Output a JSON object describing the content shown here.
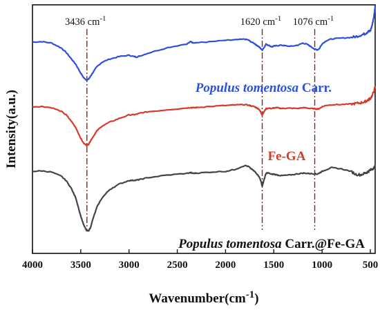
{
  "chart_data": {
    "type": "line",
    "title": "",
    "xlabel": "Wavenumber(cm",
    "xlabel_sup": "-1",
    "xlabel_close": ")",
    "ylabel": "Intensity(a.u.)",
    "xlim": [
      4000,
      450
    ],
    "x_reversed": true,
    "ylim": [
      0,
      1
    ],
    "y_ticks_shown": false,
    "grid": false,
    "x_ticks": [
      4000,
      3500,
      3000,
      2500,
      2000,
      1500,
      1000,
      500
    ],
    "x_tick_labels": [
      "4000",
      "3500",
      "3000",
      "2500",
      "2000",
      "1500",
      "1000",
      "500"
    ],
    "peak_markers": [
      {
        "x": 3436,
        "label": "3436 cm",
        "sup": "-1"
      },
      {
        "x": 1620,
        "label": "1620 cm",
        "sup": "-1"
      },
      {
        "x": 1076,
        "label": "1076 cm",
        "sup": "-1"
      }
    ],
    "peak_marker_color": "#7b2a1a",
    "series": [
      {
        "label_italic": "Populus tomentosa",
        "label_rest": " Carr.",
        "color": "#2d4fd9",
        "x": [
          4000,
          3900,
          3800,
          3700,
          3650,
          3600,
          3550,
          3500,
          3470,
          3440,
          3420,
          3400,
          3370,
          3330,
          3280,
          3200,
          3100,
          3000,
          2950,
          2920,
          2880,
          2800,
          2600,
          2400,
          2360,
          2340,
          2300,
          2200,
          2000,
          1900,
          1800,
          1760,
          1740,
          1700,
          1680,
          1660,
          1640,
          1620,
          1600,
          1580,
          1560,
          1520,
          1500,
          1460,
          1420,
          1380,
          1320,
          1250,
          1200,
          1160,
          1120,
          1076,
          1050,
          1030,
          1000,
          950,
          900,
          800,
          700,
          650,
          600,
          560,
          540,
          520,
          500,
          480,
          460,
          450
        ],
        "y": [
          0.85,
          0.852,
          0.846,
          0.826,
          0.808,
          0.784,
          0.76,
          0.725,
          0.707,
          0.697,
          0.7,
          0.712,
          0.73,
          0.752,
          0.769,
          0.782,
          0.792,
          0.797,
          0.792,
          0.79,
          0.795,
          0.806,
          0.828,
          0.843,
          0.852,
          0.848,
          0.848,
          0.85,
          0.857,
          0.859,
          0.862,
          0.858,
          0.852,
          0.844,
          0.838,
          0.833,
          0.826,
          0.818,
          0.829,
          0.842,
          0.838,
          0.831,
          0.834,
          0.836,
          0.838,
          0.835,
          0.833,
          0.838,
          0.846,
          0.842,
          0.833,
          0.822,
          0.819,
          0.823,
          0.843,
          0.857,
          0.863,
          0.866,
          0.869,
          0.872,
          0.878,
          0.883,
          0.888,
          0.892,
          0.895,
          0.92,
          0.96,
          0.996
        ]
      },
      {
        "label_italic": "",
        "label_rest": "Fe-GA",
        "color": "#d63a2a",
        "x": [
          4000,
          3900,
          3800,
          3700,
          3650,
          3600,
          3550,
          3500,
          3470,
          3440,
          3420,
          3400,
          3370,
          3330,
          3280,
          3200,
          3100,
          3000,
          2950,
          2920,
          2880,
          2800,
          2600,
          2400,
          2360,
          2340,
          2300,
          2200,
          2000,
          1900,
          1800,
          1760,
          1740,
          1700,
          1680,
          1660,
          1640,
          1620,
          1600,
          1580,
          1560,
          1520,
          1500,
          1460,
          1420,
          1380,
          1320,
          1250,
          1200,
          1160,
          1120,
          1076,
          1050,
          1030,
          1000,
          950,
          900,
          800,
          700,
          650,
          600,
          560,
          540,
          520,
          500,
          480,
          460,
          450
        ],
        "y": [
          0.59,
          0.591,
          0.586,
          0.571,
          0.557,
          0.533,
          0.505,
          0.463,
          0.443,
          0.435,
          0.438,
          0.452,
          0.471,
          0.494,
          0.512,
          0.528,
          0.543,
          0.557,
          0.558,
          0.56,
          0.565,
          0.57,
          0.578,
          0.585,
          0.587,
          0.586,
          0.587,
          0.59,
          0.595,
          0.597,
          0.599,
          0.596,
          0.594,
          0.59,
          0.586,
          0.582,
          0.572,
          0.557,
          0.571,
          0.582,
          0.584,
          0.583,
          0.585,
          0.586,
          0.583,
          0.584,
          0.584,
          0.583,
          0.586,
          0.585,
          0.583,
          0.582,
          0.581,
          0.582,
          0.59,
          0.596,
          0.598,
          0.599,
          0.601,
          0.603,
          0.606,
          0.61,
          0.613,
          0.618,
          0.624,
          0.635,
          0.655,
          0.672
        ]
      },
      {
        "label_italic": "Populus tomentosa",
        "label_rest": " Carr.@Fe-GA",
        "color": "#444444",
        "x": [
          4000,
          3900,
          3800,
          3700,
          3650,
          3600,
          3550,
          3500,
          3470,
          3440,
          3420,
          3400,
          3370,
          3330,
          3280,
          3200,
          3100,
          3000,
          2950,
          2920,
          2880,
          2800,
          2600,
          2400,
          2360,
          2340,
          2300,
          2200,
          2000,
          1900,
          1800,
          1760,
          1740,
          1700,
          1680,
          1660,
          1640,
          1620,
          1600,
          1580,
          1560,
          1520,
          1500,
          1460,
          1420,
          1380,
          1320,
          1250,
          1200,
          1160,
          1120,
          1076,
          1050,
          1030,
          1000,
          950,
          900,
          800,
          700,
          650,
          600,
          560,
          540,
          520,
          500,
          480,
          460,
          450
        ],
        "y": [
          0.33,
          0.332,
          0.327,
          0.31,
          0.292,
          0.263,
          0.222,
          0.15,
          0.115,
          0.092,
          0.09,
          0.103,
          0.143,
          0.188,
          0.223,
          0.257,
          0.279,
          0.293,
          0.294,
          0.295,
          0.298,
          0.305,
          0.315,
          0.322,
          0.325,
          0.322,
          0.323,
          0.326,
          0.33,
          0.338,
          0.354,
          0.349,
          0.342,
          0.33,
          0.322,
          0.313,
          0.299,
          0.27,
          0.298,
          0.322,
          0.324,
          0.318,
          0.319,
          0.315,
          0.313,
          0.314,
          0.316,
          0.32,
          0.323,
          0.322,
          0.321,
          0.32,
          0.319,
          0.323,
          0.33,
          0.338,
          0.345,
          0.34,
          0.33,
          0.318,
          0.316,
          0.322,
          0.325,
          0.33,
          0.335,
          0.34,
          0.345,
          0.35
        ]
      }
    ]
  }
}
